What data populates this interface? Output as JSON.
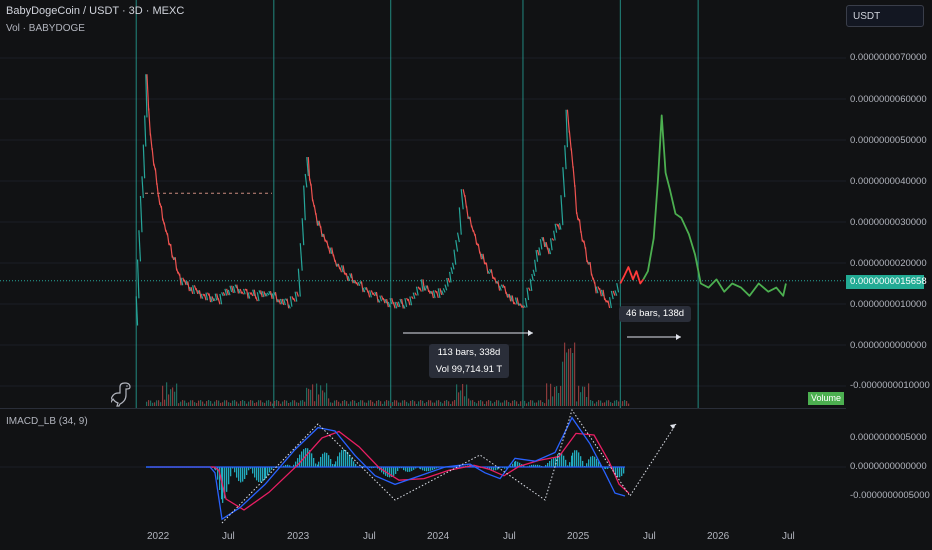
{
  "header": {
    "title": "BabyDogeCoin / USDT · 3D · MEXC",
    "volume_label": "Vol · BABYDOGE"
  },
  "currency_button": "USDT",
  "price_axis": {
    "ticks": [
      "0.0000000070000",
      "0.0000000060000",
      "0.0000000050000",
      "0.0000000040000",
      "0.0000000030000",
      "0.0000000020000",
      "0.0000000010000",
      "0.0000000000000",
      "-0.0000000010000"
    ],
    "current_price": "0.0000000015658"
  },
  "volume_badge": "Volume",
  "macd": {
    "title": "IMACD_LB (34, 9)",
    "ticks": [
      "0.0000000005000",
      "0.0000000000000",
      "-0.0000000005000"
    ]
  },
  "time_axis": [
    "2022",
    "Jul",
    "2023",
    "Jul",
    "2024",
    "Jul",
    "2025",
    "Jul",
    "2026",
    "Jul"
  ],
  "measure_tooltip": {
    "bars": "113 bars, 338d",
    "vol": "Vol 99,714.91 T"
  },
  "projection_tooltip": "46 bars, 138d",
  "colors": {
    "background": "#111214",
    "cycle_lines": "#26a69a",
    "down": "#ef5350",
    "up": "#26a69a",
    "projection_green": "#4caf50",
    "projection_red": "#ff3b3b",
    "macd_line": "#2962ff",
    "signal_line": "#e91e63",
    "histogram": "#26c6da"
  },
  "chart_data": {
    "type": "line",
    "title": "BabyDogeCoin / USDT · 3D · MEXC",
    "ylim": [
      -1e-09,
      7.4e-09
    ],
    "cycle_lines": [
      "2021-11-13",
      "2022-11-07",
      "2023-09-08",
      "2024-08-18",
      "2025-04-29",
      "2025-11-18"
    ],
    "series": [
      {
        "x": [
          "2021-11-13",
          "2021-11-20",
          "2021-11-28",
          "2021-12-05",
          "2021-12-11",
          "2021-12-20",
          "2021-12-29",
          "2022-01-10",
          "2022-01-25",
          "2022-02-15",
          "2022-03-10",
          "2022-04-05",
          "2022-05-10",
          "2022-06-15",
          "2022-07-20",
          "2022-08-20",
          "2022-09-25",
          "2022-10-25",
          "2022-11-20",
          "2022-12-20",
          "2023-01-10",
          "2023-01-20",
          "2023-01-28",
          "2023-02-05",
          "2023-02-12",
          "2023-03-01",
          "2023-03-25",
          "2023-04-20",
          "2023-05-15",
          "2023-06-15",
          "2023-07-15",
          "2023-08-15",
          "2023-09-15",
          "2023-10-15",
          "2023-11-10",
          "2023-12-01",
          "2023-12-20",
          "2024-01-10",
          "2024-02-01",
          "2024-02-20",
          "2024-03-05",
          "2024-03-15",
          "2024-03-28",
          "2024-04-15",
          "2024-05-10",
          "2024-06-05",
          "2024-07-01",
          "2024-07-25",
          "2024-08-20",
          "2024-09-10",
          "2024-09-25",
          "2024-10-10",
          "2024-10-25",
          "2024-11-10",
          "2024-11-25",
          "2024-12-05",
          "2024-12-12",
          "2024-12-22",
          "2025-01-05",
          "2025-01-20",
          "2025-02-05",
          "2025-02-25",
          "2025-03-15",
          "2025-04-01",
          "2025-04-15",
          "2025-04-29"
        ],
        "values": [
          4e-10,
          2e-09,
          3.6e-09,
          4.8e-09,
          6.5e-09,
          5.2e-09,
          4.5e-09,
          3.6e-09,
          3e-09,
          2.2e-09,
          1.6e-09,
          1.4e-09,
          1.2e-09,
          1.1e-09,
          1.4e-09,
          1.3e-09,
          1.2e-09,
          1.3e-09,
          1.1e-09,
          1e-09,
          1.3e-09,
          2.4e-09,
          3.8e-09,
          4.5e-09,
          3.8e-09,
          3e-09,
          2.5e-09,
          2e-09,
          1.7e-09,
          1.5e-09,
          1.3e-09,
          1.1e-09,
          1e-09,
          1e-09,
          1.2e-09,
          1.5e-09,
          1.3e-09,
          1.2e-09,
          1.4e-09,
          2e-09,
          2.8e-09,
          3.8e-09,
          3.2e-09,
          2.6e-09,
          2e-09,
          1.6e-09,
          1.3e-09,
          1.1e-09,
          9e-10,
          1.5e-09,
          2.2e-09,
          2.6e-09,
          2.2e-09,
          2.8e-09,
          3e-09,
          4.2e-09,
          5.6e-09,
          4.8e-09,
          3.3e-09,
          2.6e-09,
          2e-09,
          1.4e-09,
          1.2e-09,
          1e-09,
          1.3e-09,
          1.5e-09
        ]
      },
      {
        "x": [
          "2025-04-29",
          "2025-05-10",
          "2025-05-20",
          "2025-06-01",
          "2025-06-10",
          "2025-06-20",
          "2025-06-28"
        ],
        "values": [
          1.5e-09,
          1.7e-09,
          1.9e-09,
          1.6e-09,
          1.8e-09,
          1.5e-09,
          1.6e-09
        ]
      },
      {
        "x": [
          "2025-06-28",
          "2025-07-10",
          "2025-07-25",
          "2025-08-05",
          "2025-08-15",
          "2025-08-25",
          "2025-09-05",
          "2025-09-20",
          "2025-10-05",
          "2025-10-25",
          "2025-11-10",
          "2025-11-25",
          "2025-12-15",
          "2026-01-05",
          "2026-01-25",
          "2026-02-15",
          "2026-03-10",
          "2026-04-01",
          "2026-04-25",
          "2026-05-20",
          "2026-06-10",
          "2026-06-28",
          "2026-07-05"
        ],
        "values": [
          1.6e-09,
          1.8e-09,
          2.6e-09,
          4e-09,
          5.6e-09,
          4.2e-09,
          3.8e-09,
          3.2e-09,
          3.1e-09,
          2.7e-09,
          2.2e-09,
          1.5e-09,
          1.4e-09,
          1.6e-09,
          1.3e-09,
          1.5e-09,
          1.4e-09,
          1.2e-09,
          1.5e-09,
          1.3e-09,
          1.4e-09,
          1.2e-09,
          1.5e-09
        ]
      }
    ]
  }
}
